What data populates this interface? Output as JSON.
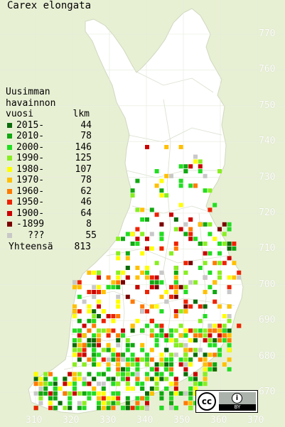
{
  "title": "Carex elongata",
  "legend": {
    "heading": [
      "Uusimman",
      "havainnon"
    ],
    "year_header": "vuosi",
    "count_header": "lkm",
    "rows": [
      {
        "label": "2015-",
        "count": "44",
        "color": "#0b6b0b"
      },
      {
        "label": "2010-",
        "count": "78",
        "color": "#11a811"
      },
      {
        "label": "2000-",
        "count": "146",
        "color": "#22dd22"
      },
      {
        "label": "1990-",
        "count": "125",
        "color": "#88ee22"
      },
      {
        "label": "1980-",
        "count": "107",
        "color": "#ffff00"
      },
      {
        "label": "1970-",
        "count": "78",
        "color": "#ffc000"
      },
      {
        "label": "1960-",
        "count": "62",
        "color": "#ff7a00"
      },
      {
        "label": "1950-",
        "count": "46",
        "color": "#ee2200"
      },
      {
        "label": "1900-",
        "count": "64",
        "color": "#cc0000"
      },
      {
        "label": "-1899",
        "count": "8",
        "color": "#7a0000"
      },
      {
        "label": "???",
        "count": "55",
        "color": "#c8c8c8"
      }
    ],
    "total_label": "Yhteensä",
    "total_count": "813"
  },
  "y_axis_labels": [
    "770",
    "760",
    "750",
    "740",
    "730",
    "720",
    "710",
    "700",
    "690",
    "680",
    "670"
  ],
  "x_axis_labels": [
    "310",
    "320",
    "330",
    "340",
    "350",
    "360",
    "370"
  ],
  "colors": {
    "water": "#e8f0d4",
    "land": "#ffffff",
    "grid": "#dfe6cf",
    "border": "#c4ccb4"
  },
  "license_badge": {
    "icon": "creative-commons-icon",
    "by_icon": "attribution-person-icon",
    "by_text": "BY"
  }
}
